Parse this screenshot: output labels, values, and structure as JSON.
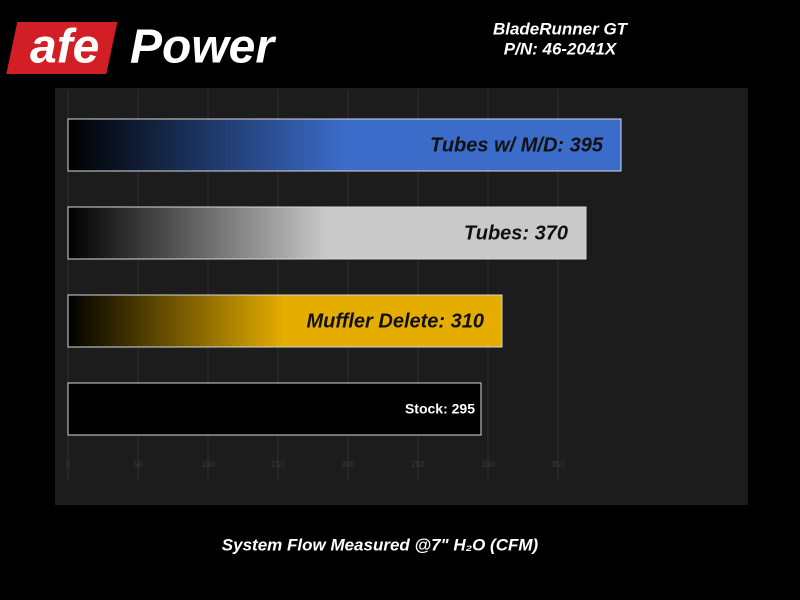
{
  "chart_data": {
    "type": "hbar",
    "logo": [
      "afe",
      "Power"
    ],
    "title": "BladeRunner GT",
    "subtitle": "P/N: 46-2041X",
    "x_label": "System Flow Measured @7\" H₂O (CFM)",
    "values": [
      395,
      370,
      310,
      295
    ],
    "value_labels": [
      "Tubes w/ M/D: 395",
      "Tubes: 370",
      "Muffler Delete: 310",
      "Stock: 295"
    ],
    "colors": [
      "#3b6cc9",
      "#c9c9c9",
      "#e5ad00",
      "#000000"
    ],
    "label_colors": [
      "#111111",
      "#111111",
      "#111111",
      "#ffffff"
    ],
    "xlim": [
      0,
      480
    ],
    "xticks": [
      0,
      50,
      100,
      150,
      200,
      250,
      300,
      350
    ],
    "grid": true
  }
}
